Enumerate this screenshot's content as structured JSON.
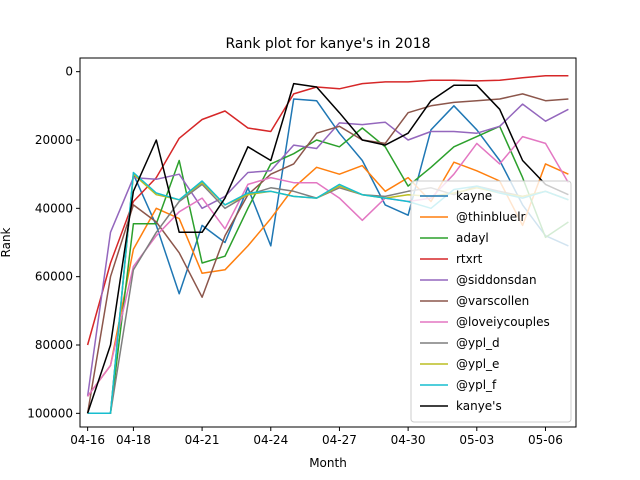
{
  "chart_data": {
    "type": "line",
    "title": "Rank plot for kanye's in 2018",
    "xlabel": "Month",
    "ylabel": "Rank",
    "y_inverted": true,
    "ylim": [
      104000,
      -4000
    ],
    "xlim": [
      "2018-04-15T16:00",
      "2018-05-07T08:00"
    ],
    "yticks": [
      0,
      20000,
      40000,
      60000,
      80000,
      100000
    ],
    "yticklabels": [
      "0",
      "20000",
      "40000",
      "60000",
      "80000",
      "100000"
    ],
    "xticks": [
      "2018-04-16",
      "2018-04-18",
      "2018-04-21",
      "2018-04-24",
      "2018-04-27",
      "2018-04-30",
      "2018-05-03",
      "2018-05-06"
    ],
    "xticklabels": [
      "04-16",
      "04-18",
      "04-21",
      "04-24",
      "04-27",
      "04-30",
      "05-03",
      "05-06"
    ],
    "grid": false,
    "legend_position": "lower-right",
    "x": [
      "2018-04-16",
      "2018-04-17",
      "2018-04-18",
      "2018-04-19",
      "2018-04-20",
      "2018-04-21",
      "2018-04-22",
      "2018-04-23",
      "2018-04-24",
      "2018-04-25",
      "2018-04-26",
      "2018-04-27",
      "2018-04-28",
      "2018-04-29",
      "2018-04-30",
      "2018-05-01",
      "2018-05-02",
      "2018-05-03",
      "2018-05-04",
      "2018-05-05",
      "2018-05-06",
      "2018-05-07"
    ],
    "series": [
      {
        "name": "kayne",
        "color": "#1f77b4",
        "values": [
          100000,
          100000,
          30000,
          45000,
          65000,
          45000,
          50000,
          34000,
          51000,
          8000,
          8500,
          18000,
          26000,
          39000,
          42000,
          17000,
          10000,
          17000,
          26000,
          39000,
          48000,
          51000
        ]
      },
      {
        "name": "@thinbluelr",
        "color": "#ff7f0e",
        "values": [
          95000,
          86000,
          52000,
          40000,
          43000,
          59000,
          58000,
          51000,
          43000,
          34000,
          28000,
          30000,
          27500,
          35000,
          31000,
          38000,
          26500,
          29000,
          32000,
          45000,
          27000,
          30000
        ]
      },
      {
        "name": "adayl",
        "color": "#2ca02c",
        "values": [
          100000,
          100000,
          44500,
          44500,
          26000,
          56000,
          54000,
          40000,
          27000,
          24000,
          20000,
          22000,
          16500,
          22000,
          33500,
          28000,
          22000,
          19000,
          16000,
          31000,
          48500,
          44000
        ]
      },
      {
        "name": "rtxrt",
        "color": "#d62728",
        "values": [
          80000,
          56000,
          38000,
          31000,
          19500,
          14000,
          11500,
          16500,
          17500,
          6500,
          4500,
          5000,
          3500,
          3000,
          3000,
          2500,
          2500,
          2700,
          2500,
          1800,
          1200,
          1200
        ]
      },
      {
        "name": "@siddonsdan",
        "color": "#9467bd",
        "values": [
          95000,
          47000,
          31000,
          31500,
          30000,
          40000,
          36500,
          29500,
          29000,
          21500,
          22500,
          15000,
          15500,
          14800,
          20000,
          17500,
          17500,
          18000,
          16000,
          9500,
          14500,
          11000
        ]
      },
      {
        "name": "@varscollen",
        "color": "#8c564b",
        "values": [
          100000,
          60000,
          39000,
          44000,
          53000,
          66000,
          48000,
          36000,
          30000,
          27000,
          18000,
          16000,
          20000,
          21000,
          12000,
          10000,
          9000,
          8500,
          8000,
          6500,
          8500,
          8000
        ]
      },
      {
        "name": "@loveiycouples",
        "color": "#e377c2",
        "values": [
          95000,
          86000,
          57000,
          48000,
          41000,
          37000,
          46000,
          33000,
          31000,
          32500,
          32500,
          37000,
          43500,
          37000,
          38000,
          37000,
          30000,
          21000,
          27000,
          19000,
          21000,
          32500
        ]
      },
      {
        "name": "@ypl_d",
        "color": "#7f7f7f",
        "values": [
          100000,
          100000,
          58000,
          47000,
          38000,
          33000,
          40000,
          36000,
          34000,
          35000,
          37000,
          34000,
          36000,
          36500,
          35000,
          34000,
          36000,
          33500,
          35000,
          36500,
          35000,
          37500
        ]
      },
      {
        "name": "@ypl_e",
        "color": "#bcbd22",
        "values": [
          100000,
          100000,
          30000,
          36000,
          37500,
          32500,
          39000,
          36000,
          35000,
          36500,
          37000,
          33500,
          36000,
          37000,
          36000,
          36500,
          35500,
          34000,
          35500,
          36500,
          35000,
          37500
        ]
      },
      {
        "name": "@ypl_f",
        "color": "#17becf",
        "values": [
          100000,
          100000,
          29500,
          35500,
          37500,
          32000,
          39000,
          35500,
          35000,
          36500,
          37000,
          33000,
          36000,
          37000,
          38000,
          40000,
          34500,
          33500,
          35500,
          37000,
          35000,
          37500
        ]
      },
      {
        "name": "kanye's",
        "color": "#000000",
        "values": [
          100000,
          80000,
          35000,
          20000,
          47000,
          47000,
          37000,
          22000,
          26000,
          3500,
          4500,
          12000,
          20000,
          21500,
          18000,
          8500,
          4000,
          4000,
          11000,
          26000,
          33000,
          36000
        ]
      }
    ]
  }
}
